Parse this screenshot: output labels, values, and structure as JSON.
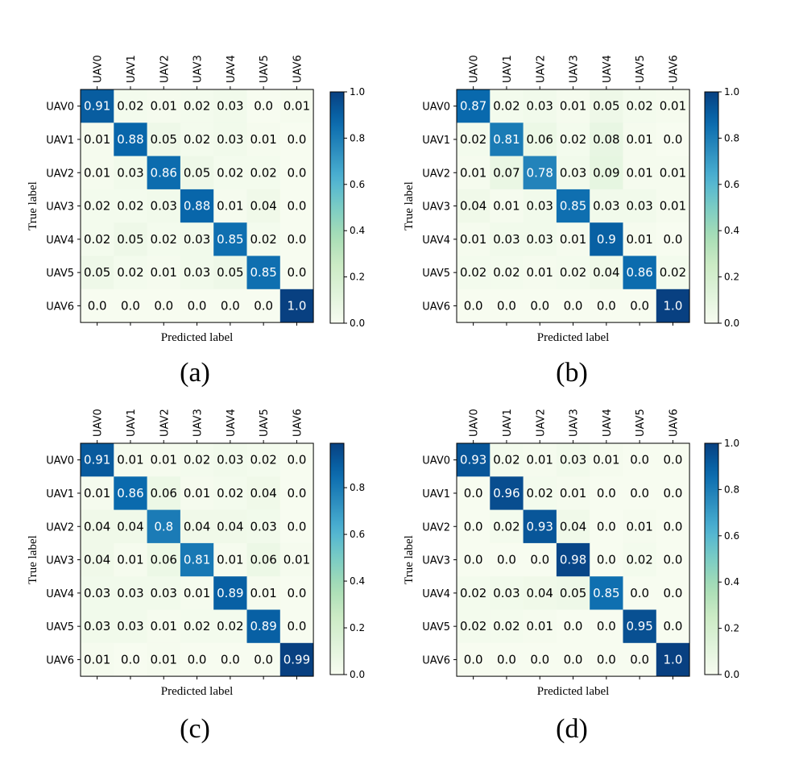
{
  "chart_data": [
    {
      "type": "heatmap",
      "caption": "(a)",
      "xlabel": "Predicted label",
      "ylabel": "True label",
      "x_categories": [
        "UAV0",
        "UAV1",
        "UAV2",
        "UAV3",
        "UAV4",
        "UAV5",
        "UAV6"
      ],
      "y_categories": [
        "UAV0",
        "UAV1",
        "UAV2",
        "UAV3",
        "UAV4",
        "UAV5",
        "UAV6"
      ],
      "values": [
        [
          "0.91",
          "0.02",
          "0.01",
          "0.02",
          "0.03",
          "0.0",
          "0.01"
        ],
        [
          "0.01",
          "0.88",
          "0.05",
          "0.02",
          "0.03",
          "0.01",
          "0.0"
        ],
        [
          "0.01",
          "0.03",
          "0.86",
          "0.05",
          "0.02",
          "0.02",
          "0.0"
        ],
        [
          "0.02",
          "0.02",
          "0.03",
          "0.88",
          "0.01",
          "0.04",
          "0.0"
        ],
        [
          "0.02",
          "0.05",
          "0.02",
          "0.03",
          "0.85",
          "0.02",
          "0.0"
        ],
        [
          "0.05",
          "0.02",
          "0.01",
          "0.03",
          "0.05",
          "0.85",
          "0.0"
        ],
        [
          "0.0",
          "0.0",
          "0.0",
          "0.0",
          "0.0",
          "0.0",
          "1.0"
        ]
      ],
      "colorbar": {
        "min": 0.0,
        "max": 1.0,
        "ticks": [
          "0.0",
          "0.2",
          "0.4",
          "0.6",
          "0.8",
          "1.0"
        ]
      },
      "colormap": "GnBu"
    },
    {
      "type": "heatmap",
      "caption": "(b)",
      "xlabel": "Predicted label",
      "ylabel": "True label",
      "x_categories": [
        "UAV0",
        "UAV1",
        "UAV2",
        "UAV3",
        "UAV4",
        "UAV5",
        "UAV6"
      ],
      "y_categories": [
        "UAV0",
        "UAV1",
        "UAV2",
        "UAV3",
        "UAV4",
        "UAV5",
        "UAV6"
      ],
      "values": [
        [
          "0.87",
          "0.02",
          "0.03",
          "0.01",
          "0.05",
          "0.02",
          "0.01"
        ],
        [
          "0.02",
          "0.81",
          "0.06",
          "0.02",
          "0.08",
          "0.01",
          "0.0"
        ],
        [
          "0.01",
          "0.07",
          "0.78",
          "0.03",
          "0.09",
          "0.01",
          "0.01"
        ],
        [
          "0.04",
          "0.01",
          "0.03",
          "0.85",
          "0.03",
          "0.03",
          "0.01"
        ],
        [
          "0.01",
          "0.03",
          "0.03",
          "0.01",
          "0.9",
          "0.01",
          "0.0"
        ],
        [
          "0.02",
          "0.02",
          "0.01",
          "0.02",
          "0.04",
          "0.86",
          "0.02"
        ],
        [
          "0.0",
          "0.0",
          "0.0",
          "0.0",
          "0.0",
          "0.0",
          "1.0"
        ]
      ],
      "colorbar": {
        "min": 0.0,
        "max": 1.0,
        "ticks": [
          "0.0",
          "0.2",
          "0.4",
          "0.6",
          "0.8",
          "1.0"
        ]
      },
      "colormap": "GnBu"
    },
    {
      "type": "heatmap",
      "caption": "(c)",
      "xlabel": "Predicted label",
      "ylabel": "True label",
      "x_categories": [
        "UAV0",
        "UAV1",
        "UAV2",
        "UAV3",
        "UAV4",
        "UAV5",
        "UAV6"
      ],
      "y_categories": [
        "UAV0",
        "UAV1",
        "UAV2",
        "UAV3",
        "UAV4",
        "UAV5",
        "UAV6"
      ],
      "values": [
        [
          "0.91",
          "0.01",
          "0.01",
          "0.02",
          "0.03",
          "0.02",
          "0.0"
        ],
        [
          "0.01",
          "0.86",
          "0.06",
          "0.01",
          "0.02",
          "0.04",
          "0.0"
        ],
        [
          "0.04",
          "0.04",
          "0.8",
          "0.04",
          "0.04",
          "0.03",
          "0.0"
        ],
        [
          "0.04",
          "0.01",
          "0.06",
          "0.81",
          "0.01",
          "0.06",
          "0.01"
        ],
        [
          "0.03",
          "0.03",
          "0.03",
          "0.01",
          "0.89",
          "0.01",
          "0.0"
        ],
        [
          "0.03",
          "0.03",
          "0.01",
          "0.02",
          "0.02",
          "0.89",
          "0.0"
        ],
        [
          "0.01",
          "0.0",
          "0.01",
          "0.0",
          "0.0",
          "0.0",
          "0.99"
        ]
      ],
      "colorbar": {
        "min": 0.0,
        "max": 0.99,
        "ticks": [
          "0.0",
          "0.2",
          "0.4",
          "0.6",
          "0.8"
        ]
      },
      "colormap": "GnBu"
    },
    {
      "type": "heatmap",
      "caption": "(d)",
      "xlabel": "Predicted label",
      "ylabel": "True label",
      "x_categories": [
        "UAV0",
        "UAV1",
        "UAV2",
        "UAV3",
        "UAV4",
        "UAV5",
        "UAV6"
      ],
      "y_categories": [
        "UAV0",
        "UAV1",
        "UAV2",
        "UAV3",
        "UAV4",
        "UAV5",
        "UAV6"
      ],
      "values": [
        [
          "0.93",
          "0.02",
          "0.01",
          "0.03",
          "0.01",
          "0.0",
          "0.0"
        ],
        [
          "0.0",
          "0.96",
          "0.02",
          "0.01",
          "0.0",
          "0.0",
          "0.0"
        ],
        [
          "0.0",
          "0.02",
          "0.93",
          "0.04",
          "0.0",
          "0.01",
          "0.0"
        ],
        [
          "0.0",
          "0.0",
          "0.0",
          "0.98",
          "0.0",
          "0.02",
          "0.0"
        ],
        [
          "0.02",
          "0.03",
          "0.04",
          "0.05",
          "0.85",
          "0.0",
          "0.0"
        ],
        [
          "0.02",
          "0.02",
          "0.01",
          "0.0",
          "0.0",
          "0.95",
          "0.0"
        ],
        [
          "0.0",
          "0.0",
          "0.0",
          "0.0",
          "0.0",
          "0.0",
          "1.0"
        ]
      ],
      "colorbar": {
        "min": 0.0,
        "max": 1.0,
        "ticks": [
          "0.0",
          "0.2",
          "0.4",
          "0.6",
          "0.8",
          "1.0"
        ]
      },
      "colormap": "GnBu"
    }
  ]
}
